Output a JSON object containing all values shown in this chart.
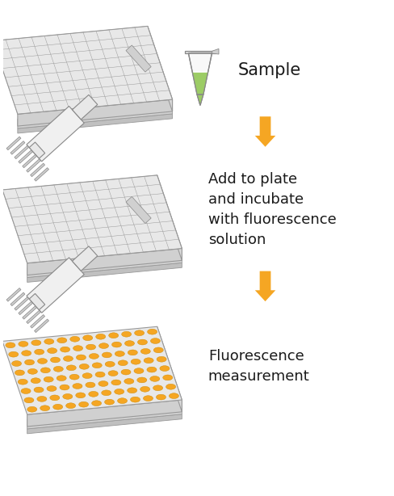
{
  "background_color": "#ffffff",
  "arrow_color": "#F5A623",
  "text_color": "#1a1a1a",
  "plate_color_empty": "#e8e8e8",
  "plate_color_filled": "#F5A623",
  "plate_border": "#999999",
  "well_border_filled": "#cc8800",
  "tube_green_light": "#9CCC65",
  "tube_green_dark": "#7CB342",
  "tube_body": "#f8f8f8",
  "tube_cap": "#e0e0e0",
  "tube_border": "#888888",
  "pipette_body": "#f0f0f0",
  "pipette_border": "#888888",
  "pipette_tip": "#cccccc",
  "step1_label": "Sample",
  "step2_label": "Add to plate\nand incubate\nwith fluorescence\nsolution",
  "step3_label": "Fluorescence\nmeasurement",
  "font_size_step1": 15,
  "font_size_steps": 13,
  "figsize": [
    4.89,
    6.14
  ],
  "dpi": 100
}
